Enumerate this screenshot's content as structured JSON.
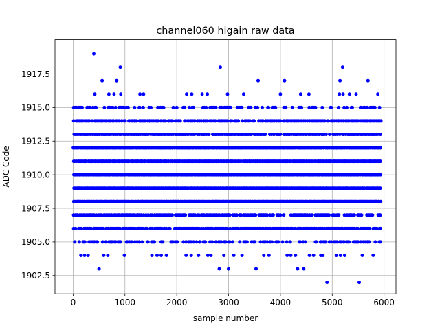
{
  "chart_data": {
    "type": "scatter",
    "title": "channel060 higain raw data",
    "xlabel": "sample number",
    "ylabel": "ADC Code",
    "xlim": [
      -350,
      6230
    ],
    "ylim": [
      1901.15,
      1920.05
    ],
    "xticks": [
      0,
      1000,
      2000,
      3000,
      4000,
      5000,
      6000
    ],
    "xtick_labels": [
      "0",
      "1000",
      "2000",
      "3000",
      "4000",
      "5000",
      "6000"
    ],
    "yticks": [
      1902.5,
      1905.0,
      1907.5,
      1910.0,
      1912.5,
      1915.0,
      1917.5
    ],
    "ytick_labels": [
      "1902.5",
      "1905.0",
      "1907.5",
      "1910.0",
      "1912.5",
      "1915.0",
      "1917.5"
    ],
    "grid": true,
    "marker_color": "#0000ff",
    "n_samples": 5930,
    "levels": [
      {
        "y": 1902,
        "x": [
          4900,
          5520
        ]
      },
      {
        "y": 1903,
        "x": [
          500,
          2820,
          3000,
          3530,
          4330,
          4450
        ]
      },
      {
        "y": 1904,
        "x": [
          150,
          220,
          290,
          590,
          670,
          990,
          1520,
          1620,
          1700,
          1800,
          2180,
          2280,
          2420,
          2600,
          2660,
          2910,
          3100,
          3260,
          3680,
          3780,
          4130,
          4200,
          4290,
          4560,
          4640,
          4780,
          4820,
          5080,
          5160,
          5240,
          5580,
          5790
        ]
      },
      {
        "y": 1905,
        "density": 0.45
      },
      {
        "y": 1906,
        "density": 0.8
      },
      {
        "y": 1907,
        "density": 0.7
      },
      {
        "y": 1908,
        "density": 1.0
      },
      {
        "y": 1909,
        "density": 1.0
      },
      {
        "y": 1910,
        "density": 1.0
      },
      {
        "y": 1911,
        "density": 1.0
      },
      {
        "y": 1912,
        "density": 1.0
      },
      {
        "y": 1913,
        "density": 0.85
      },
      {
        "y": 1914,
        "density": 0.75
      },
      {
        "y": 1915,
        "density": 0.35
      },
      {
        "y": 1916,
        "x": [
          420,
          690,
          790,
          920,
          1290,
          1360,
          2190,
          2290,
          2490,
          2590,
          2980,
          3290,
          4000,
          4390,
          4550,
          5140,
          5210,
          5330,
          5460,
          5880
        ]
      },
      {
        "y": 1917,
        "x": [
          560,
          840,
          3570,
          4080,
          5150,
          5690
        ]
      },
      {
        "y": 1918,
        "x": [
          910,
          2840,
          5200
        ]
      },
      {
        "y": 1919,
        "x": [
          400
        ]
      }
    ]
  }
}
